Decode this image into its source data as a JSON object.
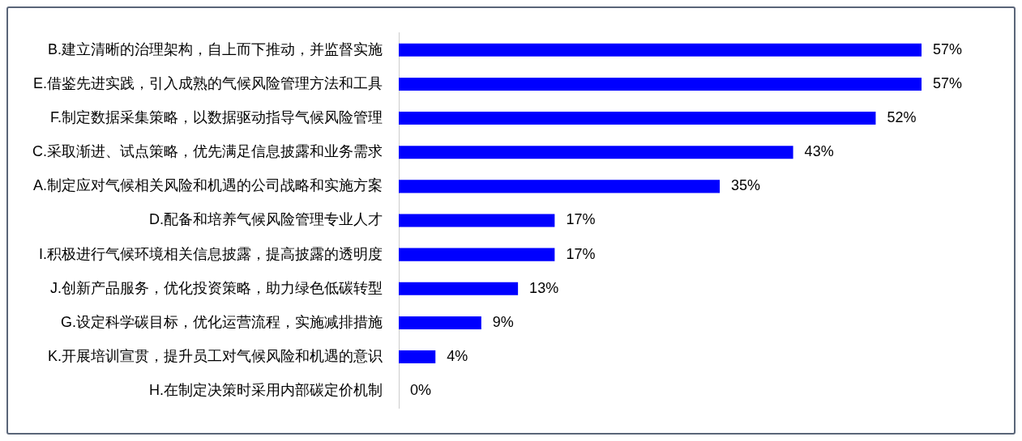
{
  "chart_data": {
    "type": "bar",
    "orientation": "horizontal",
    "categories": [
      "B.建立清晰的治理架构，自上而下推动，并监督实施",
      "E.借鉴先进实践，引入成熟的气候风险管理方法和工具",
      "F.制定数据采集策略，以数据驱动指导气候风险管理",
      "C.采取渐进、试点策略，优先满足信息披露和业务需求",
      "A.制定应对气候相关风险和机遇的公司战略和实施方案",
      "D.配备和培养气候风险管理专业人才",
      "I.积极进行气候环境相关信息披露，提高披露的透明度",
      "J.创新产品服务，优化投资策略，助力绿色低碳转型",
      "G.设定科学碳目标，优化运营流程，实施减排措施",
      "K.开展培训宣贯，提升员工对气候风险和机遇的意识",
      "H.在制定决策时采用内部碳定价机制"
    ],
    "values": [
      57,
      57,
      52,
      43,
      35,
      17,
      17,
      13,
      9,
      4,
      0
    ],
    "value_labels": [
      "57%",
      "57%",
      "52%",
      "43%",
      "35%",
      "17%",
      "17%",
      "13%",
      "9%",
      "4%",
      "0%"
    ],
    "color": "#0000ff"
  }
}
